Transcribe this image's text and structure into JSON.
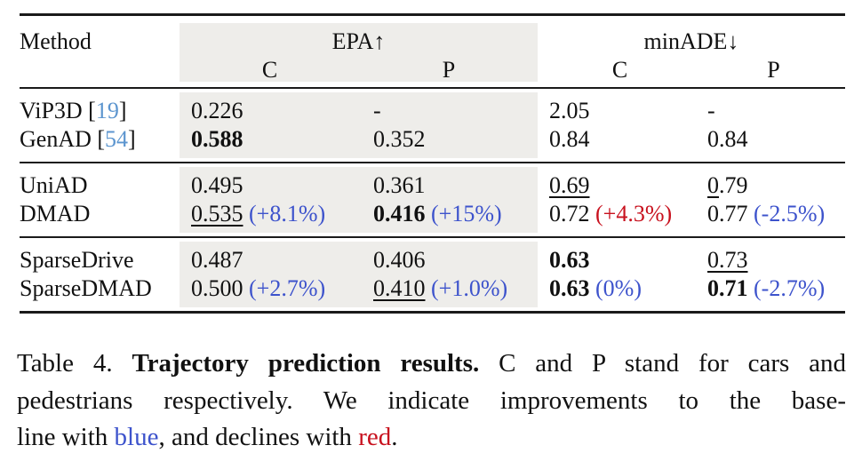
{
  "colors": {
    "blue": "#3d53cc",
    "red": "#c8111e",
    "cite": "#5c95cf",
    "shade": "#eeedea",
    "rule": "#1a1a1a",
    "text": "#111111"
  },
  "table": {
    "header": {
      "method_label": "Method",
      "group_labels": [
        {
          "label": "EPA↑",
          "shaded": true
        },
        {
          "label": "minADE↓",
          "shaded": false
        }
      ],
      "sub_labels": [
        "C",
        "P",
        "C",
        "P"
      ]
    },
    "row_groups": [
      {
        "rows": [
          {
            "name": "vip3d",
            "method": [
              {
                "t": "ViP3D ["
              },
              {
                "t": "19",
                "c": "cite"
              },
              {
                "t": "]"
              }
            ],
            "cells": [
              [
                {
                  "t": "0.226"
                }
              ],
              [
                {
                  "t": "-"
                }
              ],
              [
                {
                  "t": "2.05"
                }
              ],
              [
                {
                  "t": "-"
                }
              ]
            ]
          },
          {
            "name": "genad",
            "method": [
              {
                "t": "GenAD ["
              },
              {
                "t": "54",
                "c": "cite"
              },
              {
                "t": "]"
              }
            ],
            "cells": [
              [
                {
                  "t": "0.588",
                  "b": true
                }
              ],
              [
                {
                  "t": "0.352"
                }
              ],
              [
                {
                  "t": "0.84"
                }
              ],
              [
                {
                  "t": "0.84"
                }
              ]
            ]
          }
        ]
      },
      {
        "rows": [
          {
            "name": "uniad",
            "method": [
              {
                "t": "UniAD"
              }
            ],
            "cells": [
              [
                {
                  "t": "0.495"
                }
              ],
              [
                {
                  "t": "0.361"
                }
              ],
              [
                {
                  "t": "0.69",
                  "u": true
                }
              ],
              [
                {
                  "t": "0",
                  "u": true
                },
                {
                  "t": ".79"
                }
              ]
            ]
          },
          {
            "name": "dmad",
            "method": [
              {
                "t": "DMAD"
              }
            ],
            "cells": [
              [
                {
                  "t": "0.535",
                  "u": true
                },
                {
                  "t": " "
                },
                {
                  "t": "(+8.1%)",
                  "c": "blue"
                }
              ],
              [
                {
                  "t": "0.416",
                  "b": true
                },
                {
                  "t": " "
                },
                {
                  "t": "(+15%)",
                  "c": "blue"
                }
              ],
              [
                {
                  "t": "0.72"
                },
                {
                  "t": " "
                },
                {
                  "t": "(+4.3%)",
                  "c": "red"
                }
              ],
              [
                {
                  "t": "0.77"
                },
                {
                  "t": " "
                },
                {
                  "t": "(-2.5%)",
                  "c": "blue"
                }
              ]
            ]
          }
        ]
      },
      {
        "rows": [
          {
            "name": "sparsedrive",
            "method": [
              {
                "t": "SparseDrive"
              }
            ],
            "cells": [
              [
                {
                  "t": "0.487"
                }
              ],
              [
                {
                  "t": "0.406"
                }
              ],
              [
                {
                  "t": "0.63",
                  "b": true
                }
              ],
              [
                {
                  "t": "0.73",
                  "u": true
                }
              ]
            ]
          },
          {
            "name": "sparsedmad",
            "method": [
              {
                "t": "SparseDMAD"
              }
            ],
            "cells": [
              [
                {
                  "t": "0.500"
                },
                {
                  "t": " "
                },
                {
                  "t": "(+2.7%)",
                  "c": "blue"
                }
              ],
              [
                {
                  "t": "0.410",
                  "u": true
                },
                {
                  "t": " "
                },
                {
                  "t": "(+1.0%)",
                  "c": "blue"
                }
              ],
              [
                {
                  "t": "0.63",
                  "b": true
                },
                {
                  "t": " "
                },
                {
                  "t": "(0%)",
                  "c": "blue"
                }
              ],
              [
                {
                  "t": "0.71",
                  "b": true
                },
                {
                  "t": " "
                },
                {
                  "t": "(-2.7%)",
                  "c": "blue"
                }
              ]
            ]
          }
        ]
      }
    ]
  },
  "caption": {
    "lines": [
      {
        "justify": true,
        "segments": [
          {
            "t": "Table 4. "
          },
          {
            "t": "Trajectory prediction results.",
            "b": true
          },
          {
            "t": " C and P stand for cars and"
          }
        ]
      },
      {
        "justify": true,
        "segments": [
          {
            "t": "pedestrians respectively. We indicate improvements to the base-"
          }
        ]
      },
      {
        "justify": false,
        "segments": [
          {
            "t": "line with "
          },
          {
            "t": "blue",
            "c": "blue"
          },
          {
            "t": ", and declines with "
          },
          {
            "t": "red",
            "c": "red"
          },
          {
            "t": "."
          }
        ]
      }
    ]
  }
}
